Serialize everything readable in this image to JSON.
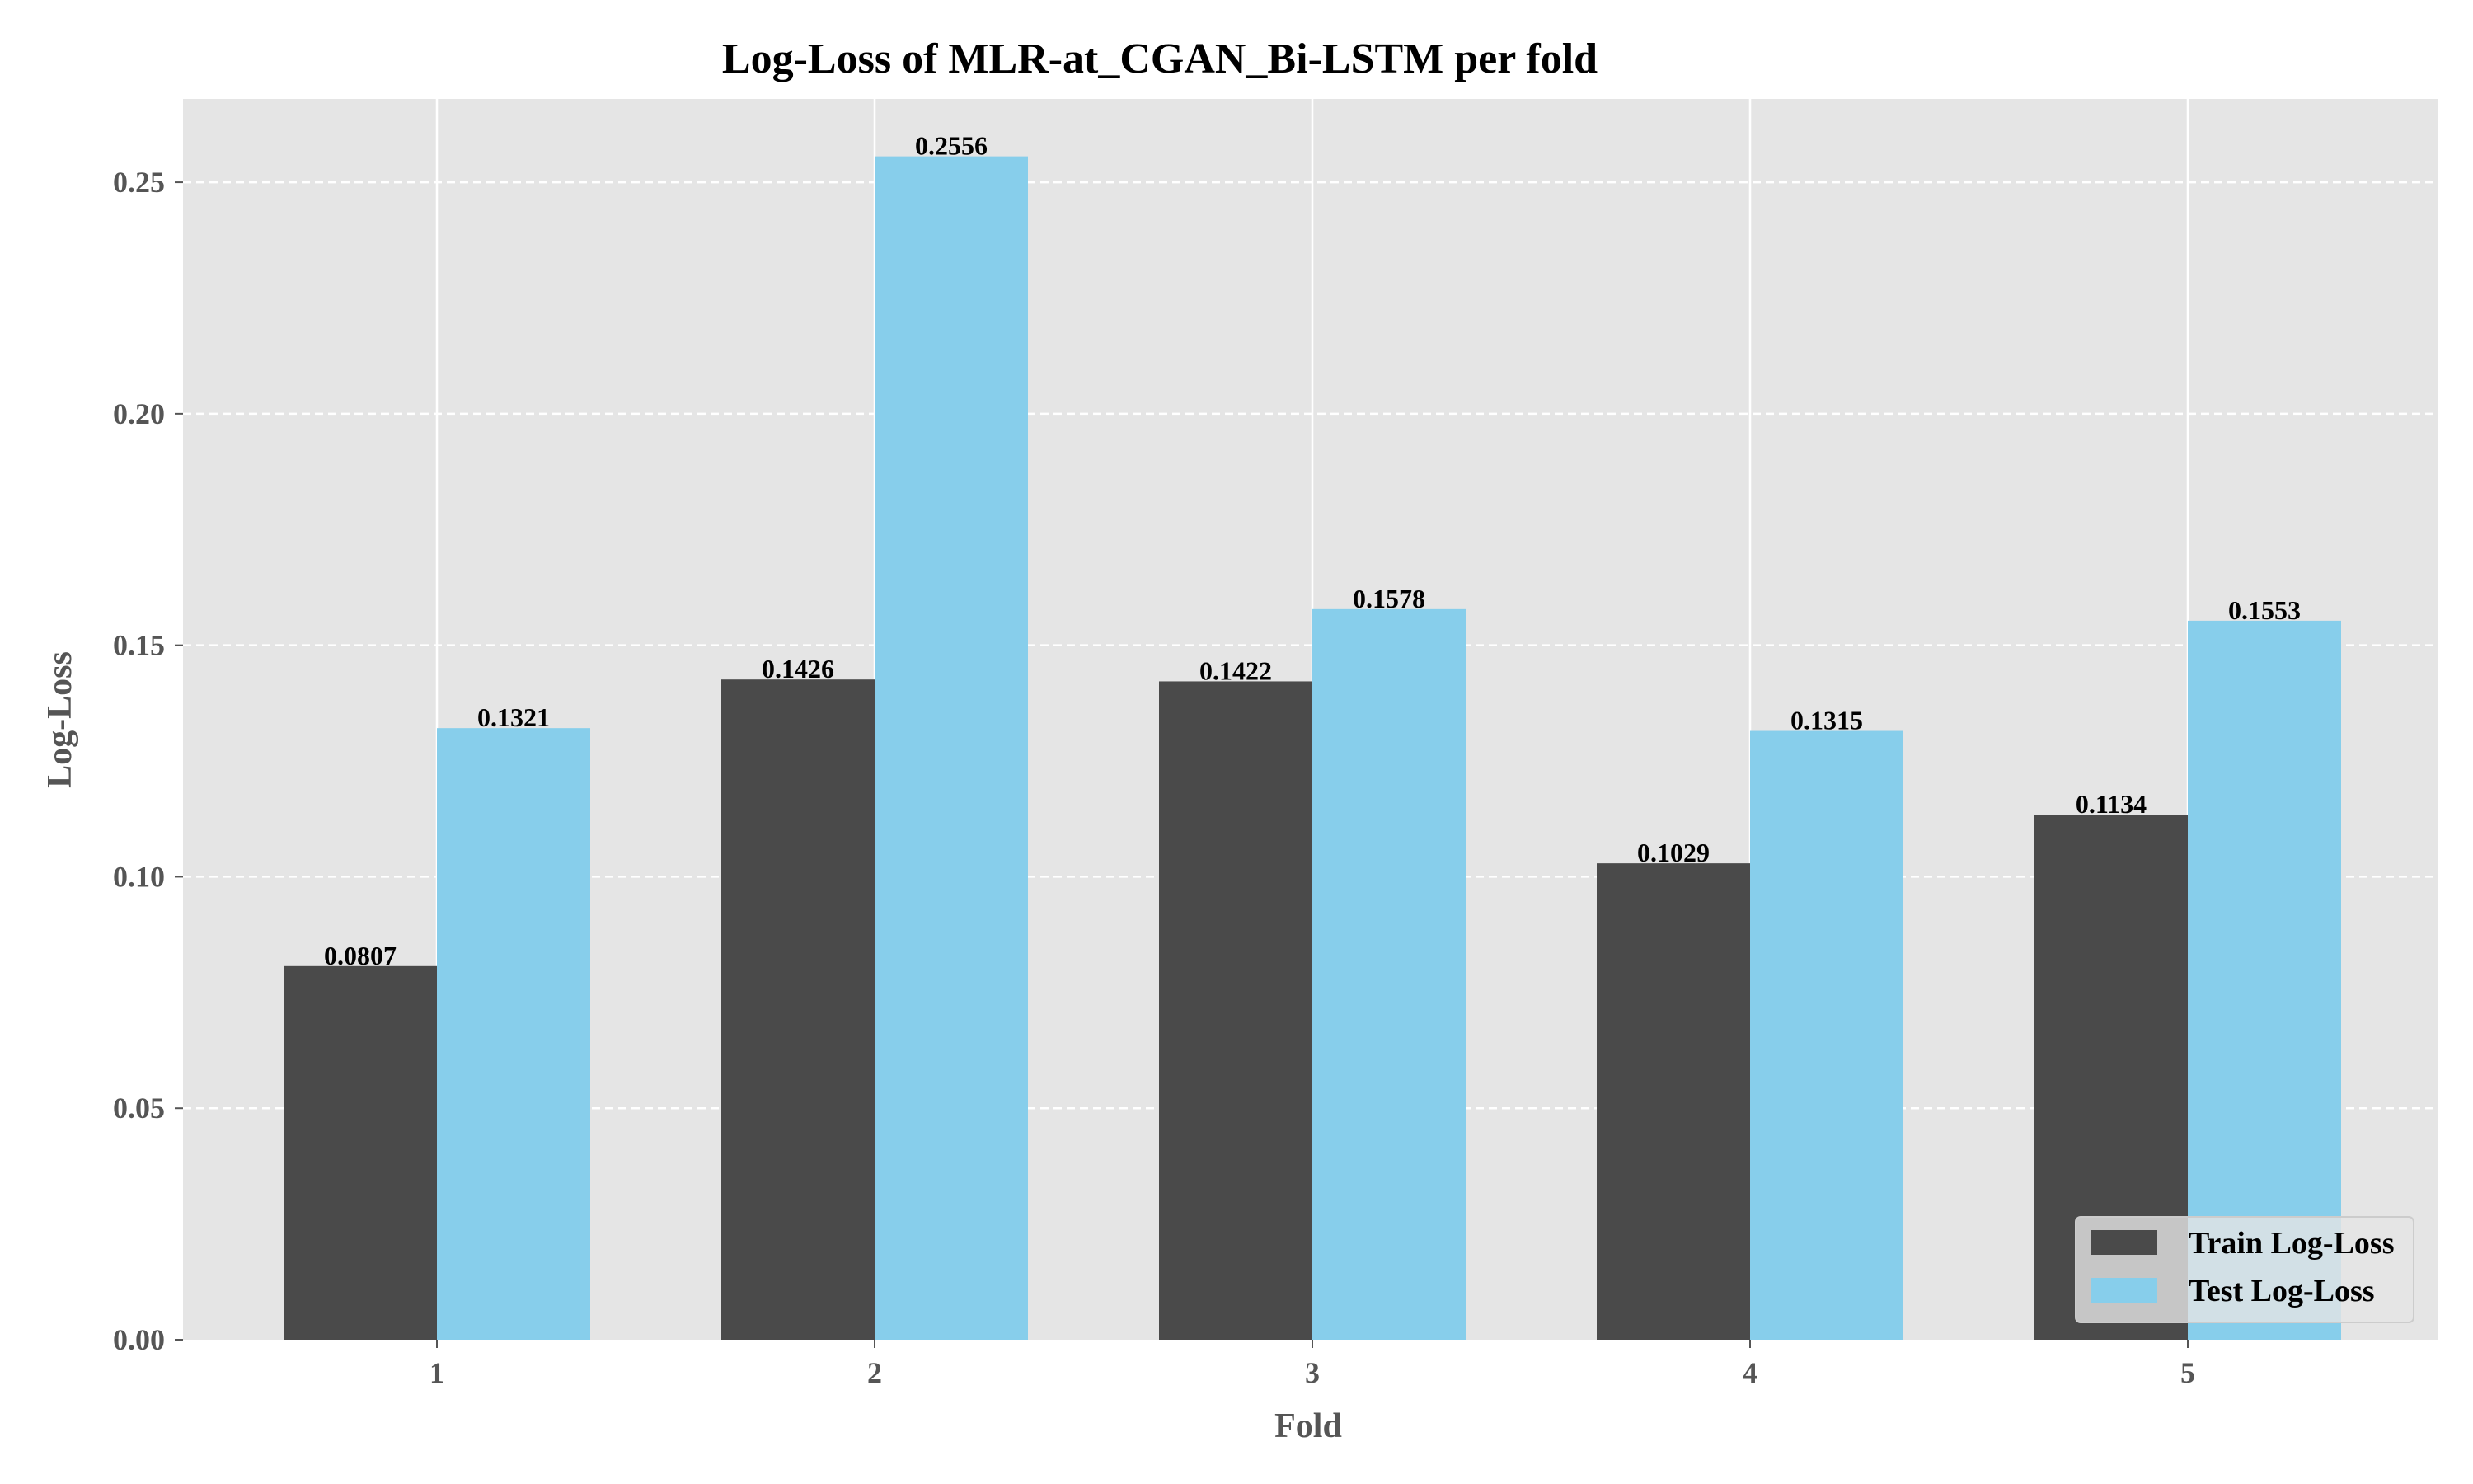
{
  "chart_data": {
    "type": "bar",
    "title": "Log-Loss of MLR-at_CGAN_Bi-LSTM per fold",
    "xlabel": "Fold",
    "ylabel": "Log-Loss",
    "categories": [
      "1",
      "2",
      "3",
      "4",
      "5"
    ],
    "series": [
      {
        "name": "Train Log-Loss",
        "color": "#4a4a4a",
        "values": [
          0.0807,
          0.1426,
          0.1422,
          0.1029,
          0.1134
        ],
        "labels": [
          "0.0807",
          "0.1426",
          "0.1422",
          "0.1029",
          "0.1134"
        ]
      },
      {
        "name": "Test Log-Loss",
        "color": "#87ceeb",
        "values": [
          0.1321,
          0.2556,
          0.1578,
          0.1315,
          0.1553
        ],
        "labels": [
          "0.1321",
          "0.2556",
          "0.1578",
          "0.1315",
          "0.1553"
        ]
      }
    ],
    "yticks": [
      0,
      0.05,
      0.1,
      0.15,
      0.2,
      0.25
    ],
    "ytick_labels": [
      "0.00",
      "0.05",
      "0.10",
      "0.15",
      "0.20",
      "0.25"
    ],
    "ylim": [
      0,
      0.268
    ],
    "grid": {
      "y": "dashed",
      "x": "solid"
    },
    "legend_position": "bottom-right",
    "plot_background": "#e5e5e5",
    "grid_color": "#ffffff"
  }
}
